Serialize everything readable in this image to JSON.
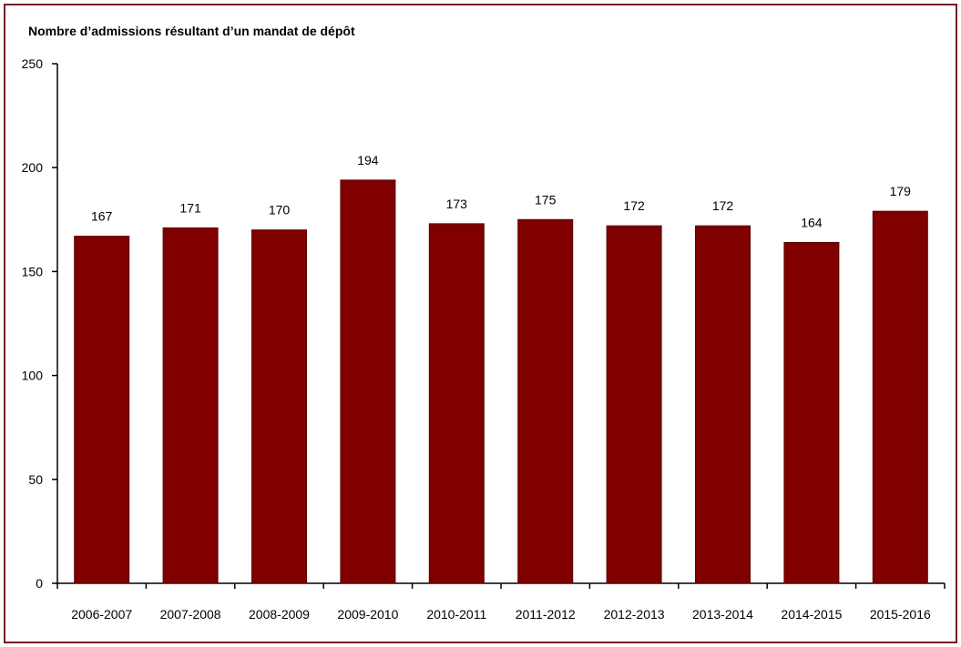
{
  "chart_data": {
    "type": "bar",
    "title": "Nombre d’admissions résultant d’un mandat de dépôt",
    "xlabel": "",
    "ylabel": "",
    "categories": [
      "2006-2007",
      "2007-2008",
      "2008-2009",
      "2009-2010",
      "2010-2011",
      "2011-2012",
      "2012-2013",
      "2013-2014",
      "2014-2015",
      "2015-2016"
    ],
    "values": [
      167,
      171,
      170,
      194,
      173,
      175,
      172,
      172,
      164,
      179
    ],
    "ylim": [
      0,
      250
    ],
    "yticks": [
      0,
      50,
      100,
      150,
      200,
      250
    ],
    "grid": false,
    "legend": "none",
    "data_labels": true,
    "bar_color": "#800000",
    "frame_color": "#7b1c22"
  }
}
